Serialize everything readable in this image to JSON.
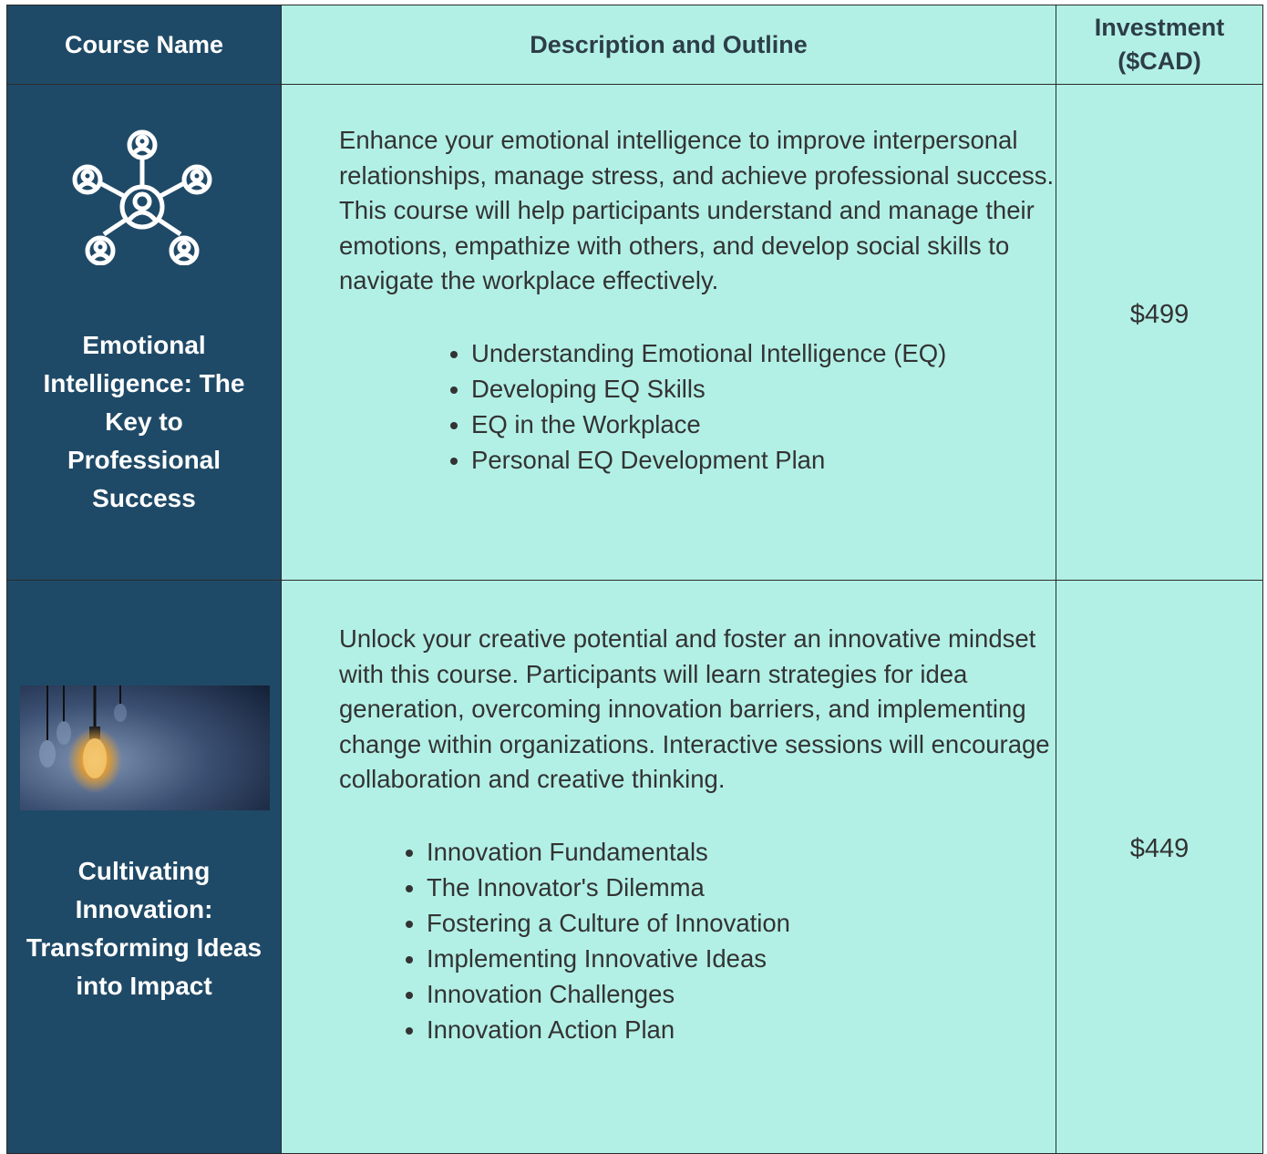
{
  "table": {
    "headers": [
      "Course Name",
      "Description and Outline",
      "Investment ($CAD)"
    ],
    "rows": [
      {
        "name": "Emotional Intelligence: The Key to Professional Success",
        "description": "Enhance your emotional intelligence to improve interpersonal relationships, manage stress, and achieve professional success. This course will help participants understand and manage their emotions, empathize with others, and develop social skills to navigate the workplace effectively.",
        "outline": [
          "Understanding Emotional Intelligence (EQ)",
          "Developing EQ Skills",
          "EQ in the Workplace",
          "Personal EQ Development Plan"
        ],
        "price": "$499"
      },
      {
        "name": "Cultivating Innovation: Transforming Ideas into Impact",
        "description": "Unlock your creative potential and foster an innovative mindset with this course. Participants will learn strategies for idea generation, overcoming innovation barriers, and implementing change within organizations. Interactive sessions will encourage collaboration and creative thinking.",
        "outline": [
          "Innovation Fundamentals",
          "The Innovator's Dilemma",
          "Fostering a Culture of Innovation",
          "Implementing Innovative Ideas",
          "Innovation Challenges",
          "Innovation Action Plan"
        ],
        "price": "$449"
      }
    ]
  }
}
